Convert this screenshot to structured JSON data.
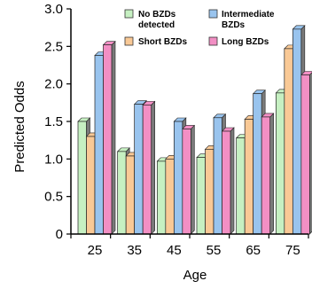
{
  "chart_data": {
    "type": "bar",
    "title": "",
    "xlabel": "Age",
    "ylabel": "Predicted Odds",
    "categories": [
      "25",
      "35",
      "45",
      "55",
      "65",
      "75"
    ],
    "ylim": [
      0,
      3.0
    ],
    "yticks": [
      "0",
      "0.5",
      "1.0",
      "1.5",
      "2.0",
      "2.5",
      "3.0"
    ],
    "grid": false,
    "legend_position": "top",
    "series": [
      {
        "name": "No BZDs detected",
        "color": "#c6f0c2",
        "values": [
          1.5,
          1.1,
          0.97,
          1.02,
          1.28,
          1.88
        ]
      },
      {
        "name": "Short BZDs",
        "color": "#f9c996",
        "values": [
          1.3,
          1.04,
          1.0,
          1.13,
          1.53,
          2.47
        ]
      },
      {
        "name": "Intermediate BZDs",
        "color": "#99c4ee",
        "values": [
          2.38,
          1.73,
          1.5,
          1.55,
          1.87,
          2.73
        ]
      },
      {
        "name": "Long BZDs",
        "color": "#f28fc4",
        "values": [
          2.52,
          1.72,
          1.4,
          1.37,
          1.56,
          2.12
        ]
      }
    ]
  }
}
